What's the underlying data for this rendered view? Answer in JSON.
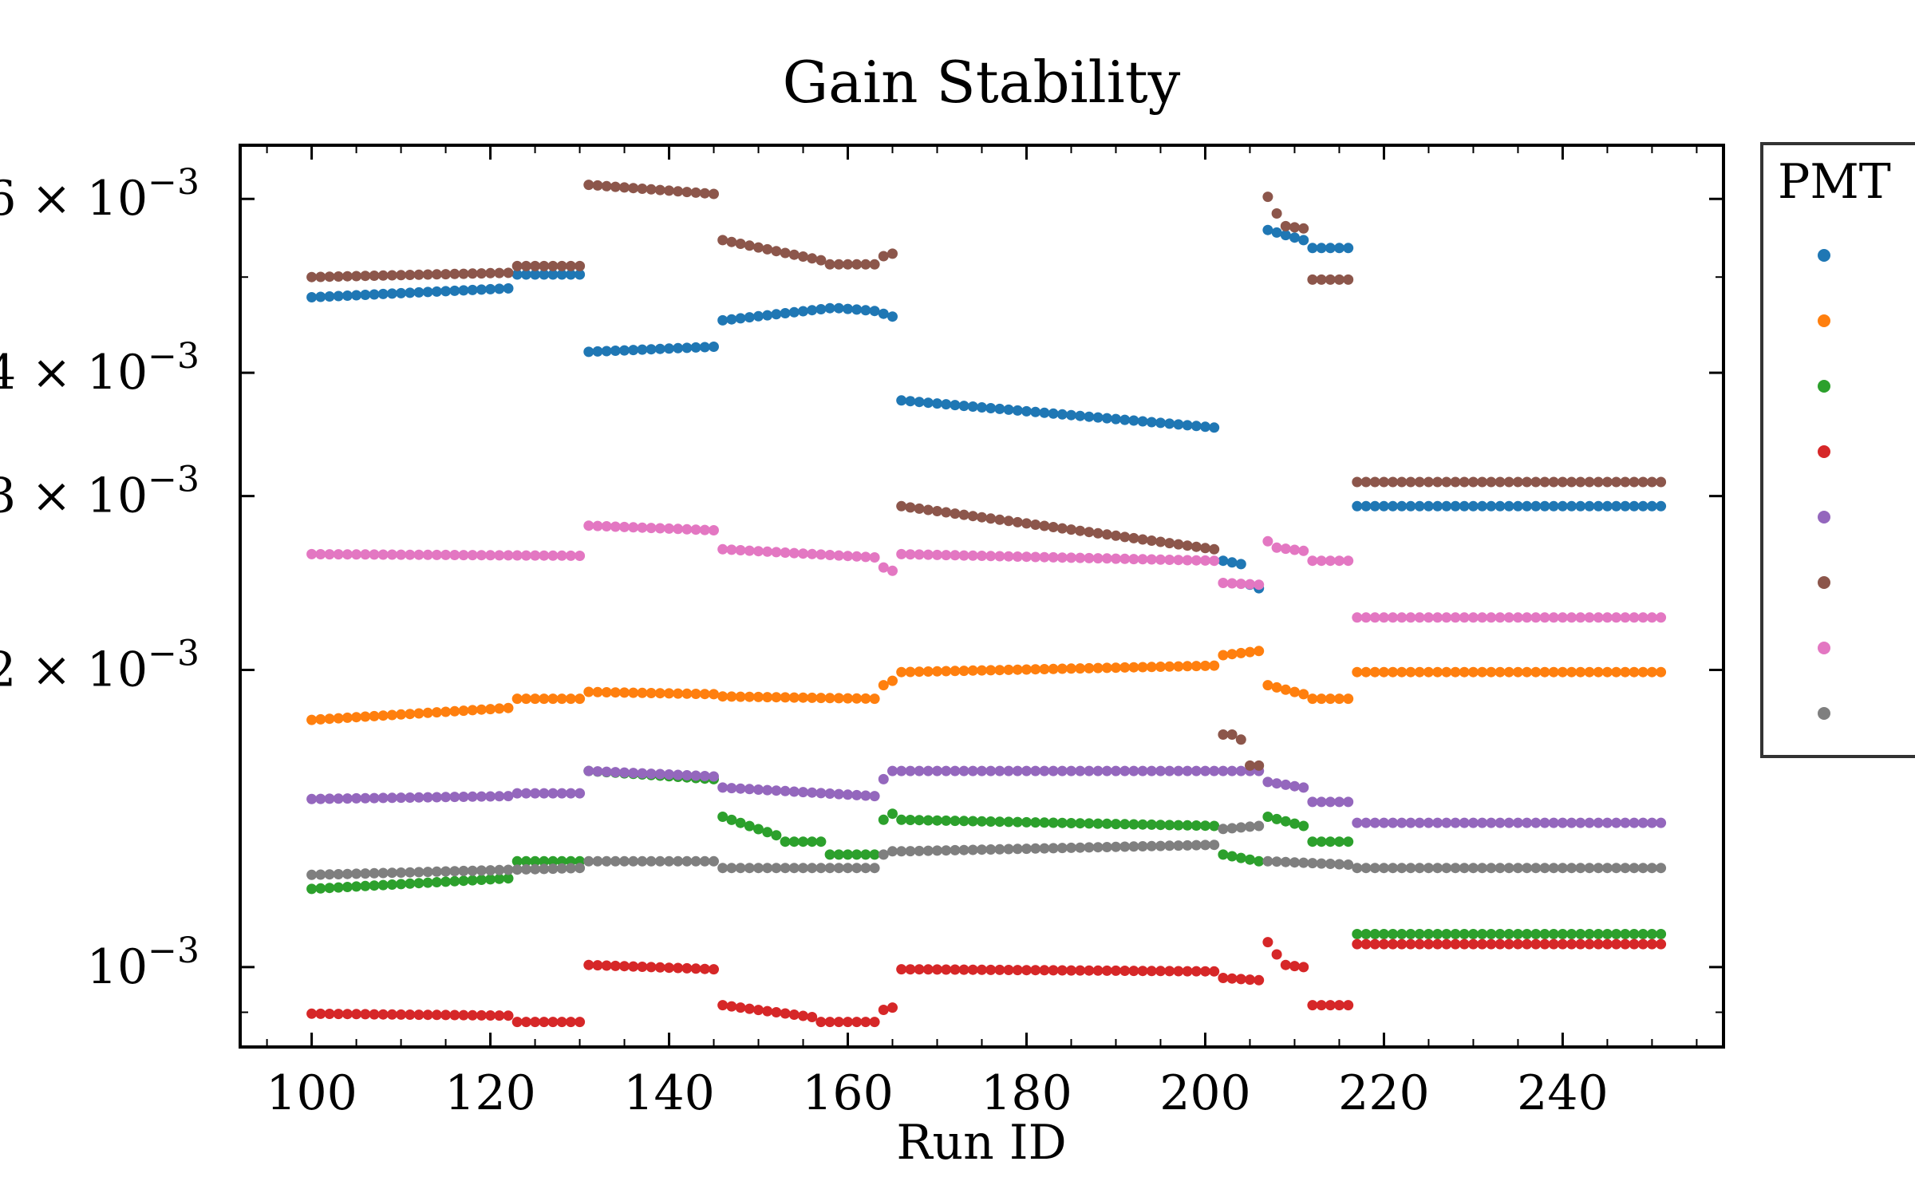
{
  "chart_data": {
    "type": "scatter",
    "title": "Gain Stability",
    "xlabel": "Run ID",
    "ylabel": "",
    "yscale": "log",
    "xlim": [
      92,
      258
    ],
    "ylim": [
      0.00083,
      0.0068
    ],
    "xticks": [
      {
        "value": 100,
        "label": "100"
      },
      {
        "value": 120,
        "label": "120"
      },
      {
        "value": 140,
        "label": "140"
      },
      {
        "value": 160,
        "label": "160"
      },
      {
        "value": 180,
        "label": "180"
      },
      {
        "value": 200,
        "label": "200"
      },
      {
        "value": 220,
        "label": "220"
      },
      {
        "value": 240,
        "label": "240"
      }
    ],
    "yticks": [
      {
        "value": 0.001,
        "base": "10",
        "exp": "−3"
      },
      {
        "value": 0.002,
        "base": "2 × 10",
        "exp": "−3"
      },
      {
        "value": 0.003,
        "base": "3 × 10",
        "exp": "−3"
      },
      {
        "value": 0.004,
        "base": "4 × 10",
        "exp": "−3"
      },
      {
        "value": 0.006,
        "base": "6 × 10",
        "exp": "−3"
      }
    ],
    "legend": {
      "title": "PMT",
      "position": "right, outside plot"
    },
    "grid": false,
    "series": [
      {
        "color": "#1f77b4",
        "segments": [
          [
            100,
            122,
            0.00477,
            0.00487
          ],
          [
            123,
            130,
            0.00503,
            0.00503
          ],
          [
            131,
            145,
            0.0042,
            0.00425
          ],
          [
            146,
            158,
            0.00452,
            0.00465
          ],
          [
            159,
            163,
            0.00465,
            0.00462
          ],
          [
            164,
            165,
            0.00459,
            0.00456
          ],
          [
            166,
            201,
            0.00375,
            0.00352
          ],
          [
            202,
            204,
            0.00258,
            0.00256
          ],
          [
            205,
            206,
            0.00244,
            0.00242
          ],
          [
            207,
            211,
            0.00558,
            0.00545
          ],
          [
            212,
            216,
            0.00535,
            0.00535
          ],
          [
            217,
            251,
            0.00293,
            0.00293
          ]
        ]
      },
      {
        "color": "#ff7f0e",
        "segments": [
          [
            100,
            122,
            0.00178,
            0.00183
          ],
          [
            123,
            130,
            0.00187,
            0.00187
          ],
          [
            131,
            145,
            0.0019,
            0.00189
          ],
          [
            146,
            163,
            0.00188,
            0.00187
          ],
          [
            164,
            165,
            0.00193,
            0.00195
          ],
          [
            166,
            201,
            0.00199,
            0.00202
          ],
          [
            202,
            206,
            0.00207,
            0.00209
          ],
          [
            207,
            211,
            0.00193,
            0.00189
          ],
          [
            212,
            216,
            0.00187,
            0.00187
          ],
          [
            217,
            251,
            0.00199,
            0.00199
          ]
        ]
      },
      {
        "color": "#2ca02c",
        "segments": [
          [
            100,
            122,
            0.0012,
            0.00123
          ],
          [
            123,
            130,
            0.00128,
            0.00128
          ],
          [
            131,
            145,
            0.00158,
            0.00155
          ],
          [
            146,
            152,
            0.00142,
            0.00136
          ],
          [
            153,
            157,
            0.00134,
            0.00134
          ],
          [
            158,
            163,
            0.0013,
            0.0013
          ],
          [
            164,
            165,
            0.00141,
            0.00143
          ],
          [
            166,
            201,
            0.00141,
            0.00139
          ],
          [
            202,
            206,
            0.0013,
            0.00128
          ],
          [
            207,
            211,
            0.00142,
            0.00139
          ],
          [
            212,
            216,
            0.00134,
            0.00134
          ],
          [
            217,
            251,
            0.00108,
            0.00108
          ]
        ]
      },
      {
        "color": "#d62728",
        "segments": [
          [
            100,
            122,
            0.000897,
            0.000893
          ],
          [
            123,
            130,
            0.00088,
            0.00088
          ],
          [
            131,
            145,
            0.001005,
            0.000995
          ],
          [
            146,
            156,
            0.000915,
            0.00089
          ],
          [
            157,
            163,
            0.00088,
            0.00088
          ],
          [
            164,
            165,
            0.000905,
            0.00091
          ],
          [
            166,
            201,
            0.000995,
            0.00099
          ],
          [
            202,
            206,
            0.000975,
            0.00097
          ],
          [
            207,
            207,
            0.00106,
            0.00106
          ],
          [
            208,
            208,
            0.00103,
            0.00103
          ],
          [
            209,
            211,
            0.001005,
            0.001
          ],
          [
            212,
            216,
            0.000915,
            0.000915
          ],
          [
            217,
            251,
            0.001055,
            0.001055
          ]
        ]
      },
      {
        "color": "#9467bd",
        "segments": [
          [
            100,
            122,
            0.00148,
            0.00149
          ],
          [
            123,
            130,
            0.0015,
            0.0015
          ],
          [
            131,
            145,
            0.00158,
            0.00156
          ],
          [
            146,
            163,
            0.00152,
            0.00149
          ],
          [
            164,
            165,
            0.00155,
            0.00158
          ],
          [
            166,
            206,
            0.00158,
            0.00158
          ],
          [
            207,
            211,
            0.00154,
            0.00152
          ],
          [
            212,
            216,
            0.00147,
            0.00147
          ],
          [
            217,
            251,
            0.0014,
            0.0014
          ]
        ]
      },
      {
        "color": "#8c564b",
        "segments": [
          [
            100,
            122,
            0.005,
            0.00505
          ],
          [
            123,
            130,
            0.00513,
            0.00513
          ],
          [
            131,
            145,
            0.0062,
            0.00607
          ],
          [
            146,
            157,
            0.00545,
            0.0052
          ],
          [
            158,
            163,
            0.00515,
            0.00515
          ],
          [
            164,
            165,
            0.00525,
            0.00528
          ],
          [
            166,
            201,
            0.00293,
            0.00265
          ],
          [
            202,
            203,
            0.00172,
            0.00172
          ],
          [
            204,
            204,
            0.0017,
            0.0017
          ],
          [
            205,
            206,
            0.0016,
            0.0016
          ],
          [
            207,
            207,
            0.00603,
            0.00603
          ],
          [
            208,
            208,
            0.0058,
            0.0058
          ],
          [
            209,
            211,
            0.00563,
            0.0056
          ],
          [
            212,
            216,
            0.00497,
            0.00497
          ],
          [
            217,
            251,
            0.0031,
            0.0031
          ]
        ]
      },
      {
        "color": "#e377c2",
        "segments": [
          [
            100,
            130,
            0.00262,
            0.00261
          ],
          [
            131,
            145,
            0.0028,
            0.00277
          ],
          [
            146,
            163,
            0.00265,
            0.0026
          ],
          [
            164,
            165,
            0.00254,
            0.00252
          ],
          [
            166,
            201,
            0.00262,
            0.00258
          ],
          [
            202,
            206,
            0.00245,
            0.00244
          ],
          [
            207,
            207,
            0.0027,
            0.0027
          ],
          [
            208,
            211,
            0.00266,
            0.00264
          ],
          [
            212,
            216,
            0.00258,
            0.00258
          ],
          [
            217,
            251,
            0.00226,
            0.00226
          ]
        ]
      },
      {
        "color": "#7f7f7f",
        "segments": [
          [
            100,
            130,
            0.00124,
            0.00126
          ],
          [
            131,
            145,
            0.00128,
            0.00128
          ],
          [
            146,
            163,
            0.00126,
            0.00126
          ],
          [
            164,
            165,
            0.0013,
            0.00131
          ],
          [
            166,
            201,
            0.00131,
            0.00133
          ],
          [
            202,
            206,
            0.00138,
            0.00139
          ],
          [
            207,
            216,
            0.00128,
            0.00127
          ],
          [
            217,
            251,
            0.00126,
            0.00126
          ]
        ]
      }
    ]
  }
}
